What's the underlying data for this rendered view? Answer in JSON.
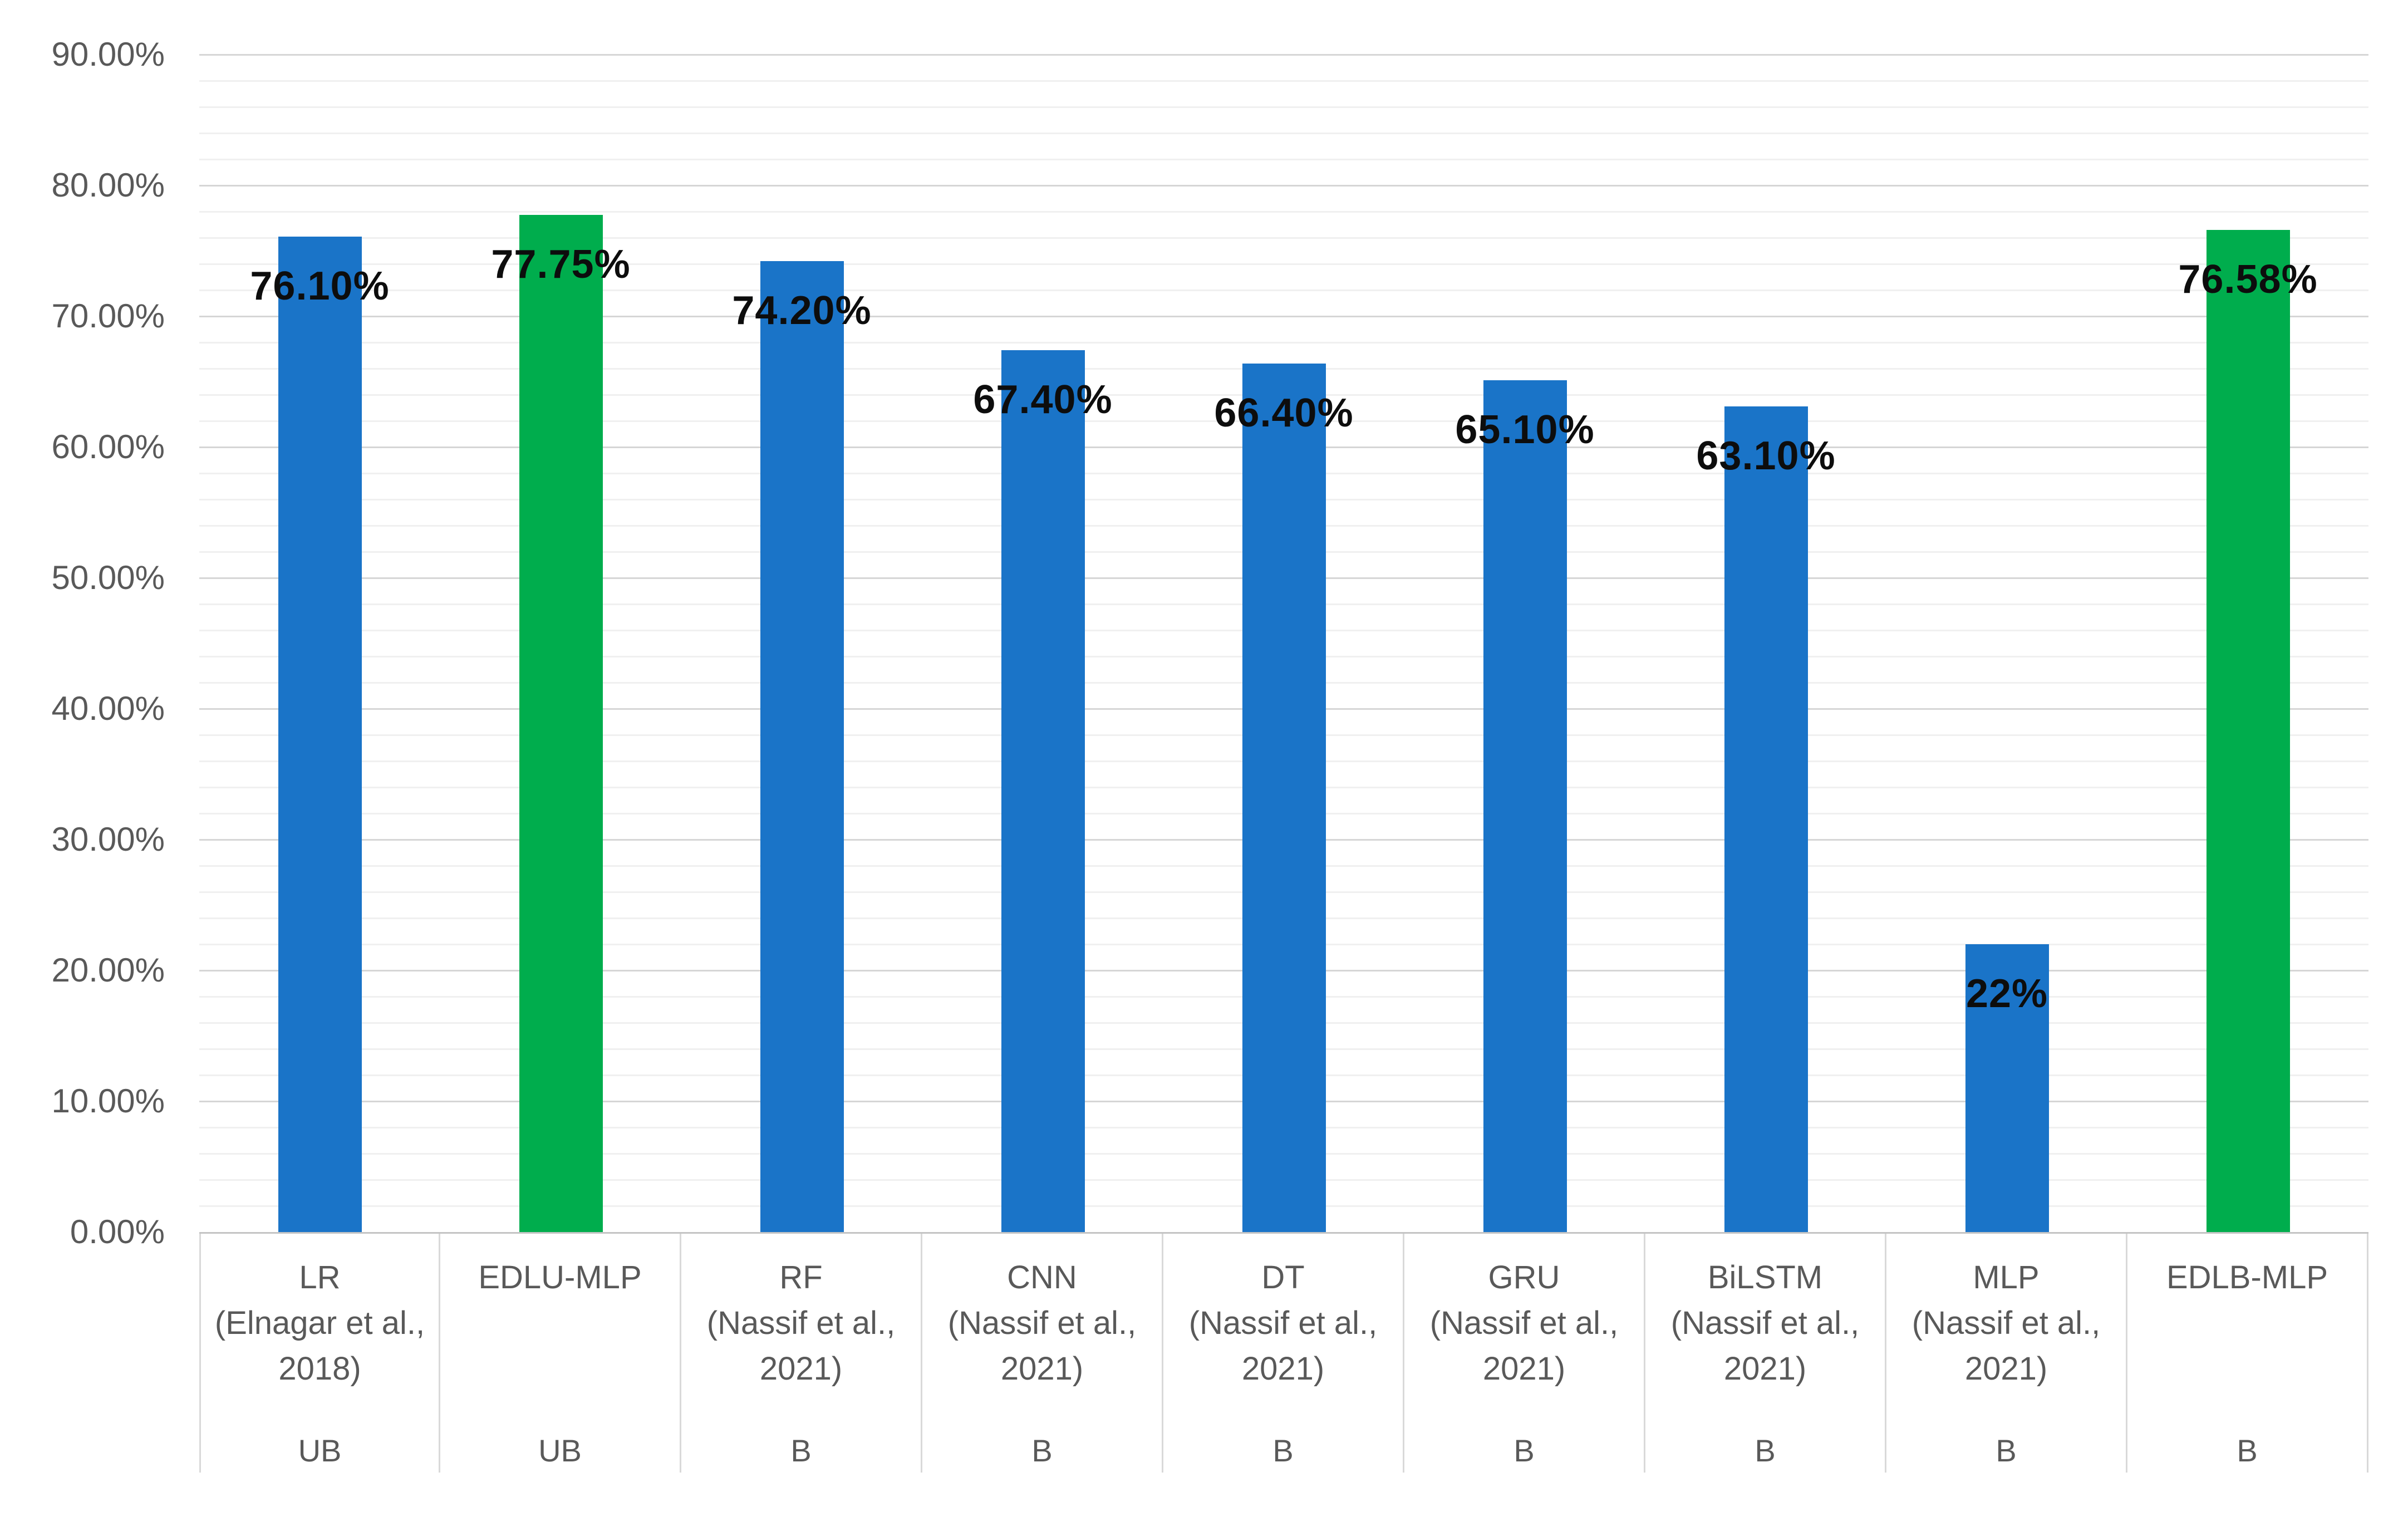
{
  "chart_data": {
    "type": "bar",
    "title": "",
    "xlabel": "",
    "ylabel": "",
    "legend": null,
    "y_axis": {
      "min": 0,
      "max": 90,
      "major_step": 10,
      "minor_step": 2,
      "grid": true,
      "tick_labels": [
        "0.00%",
        "10.00%",
        "20.00%",
        "30.00%",
        "40.00%",
        "50.00%",
        "60.00%",
        "70.00%",
        "80.00%",
        "90.00%"
      ]
    },
    "bars": [
      {
        "name_lines": [
          "LR",
          "(Elnagar et al.,",
          "2018)"
        ],
        "group": "UB",
        "value": 76.1,
        "label": "76.10%",
        "color": "blue"
      },
      {
        "name_lines": [
          "EDLU-MLP"
        ],
        "group": "UB",
        "value": 77.75,
        "label": "77.75%",
        "color": "green"
      },
      {
        "name_lines": [
          "RF",
          "(Nassif et al.,",
          "2021)"
        ],
        "group": "B",
        "value": 74.2,
        "label": "74.20%",
        "color": "blue"
      },
      {
        "name_lines": [
          "CNN",
          "(Nassif et al.,",
          "2021)"
        ],
        "group": "B",
        "value": 67.4,
        "label": "67.40%",
        "color": "blue"
      },
      {
        "name_lines": [
          "DT",
          "(Nassif et al.,",
          "2021)"
        ],
        "group": "B",
        "value": 66.4,
        "label": "66.40%",
        "color": "blue"
      },
      {
        "name_lines": [
          "GRU",
          "(Nassif et al.,",
          "2021)"
        ],
        "group": "B",
        "value": 65.1,
        "label": "65.10%",
        "color": "blue"
      },
      {
        "name_lines": [
          "BiLSTM",
          "(Nassif et al.,",
          "2021)"
        ],
        "group": "B",
        "value": 63.1,
        "label": "63.10%",
        "color": "blue"
      },
      {
        "name_lines": [
          "MLP",
          "(Nassif et al.,",
          "2021)"
        ],
        "group": "B",
        "value": 22,
        "label": "22%",
        "color": "blue"
      },
      {
        "name_lines": [
          "EDLB-MLP"
        ],
        "group": "B",
        "value": 76.58,
        "label": "76.58%",
        "color": "green"
      }
    ],
    "colors": {
      "blue": "#1a74c8",
      "green": "#00ad4d",
      "grid_major": "#d6d6d6",
      "grid_minor": "#f0f0f0",
      "axis_text": "#595959",
      "table_border": "#d9d9d9",
      "value_label_text": "#0d0d0d",
      "background": "#ffffff"
    }
  }
}
